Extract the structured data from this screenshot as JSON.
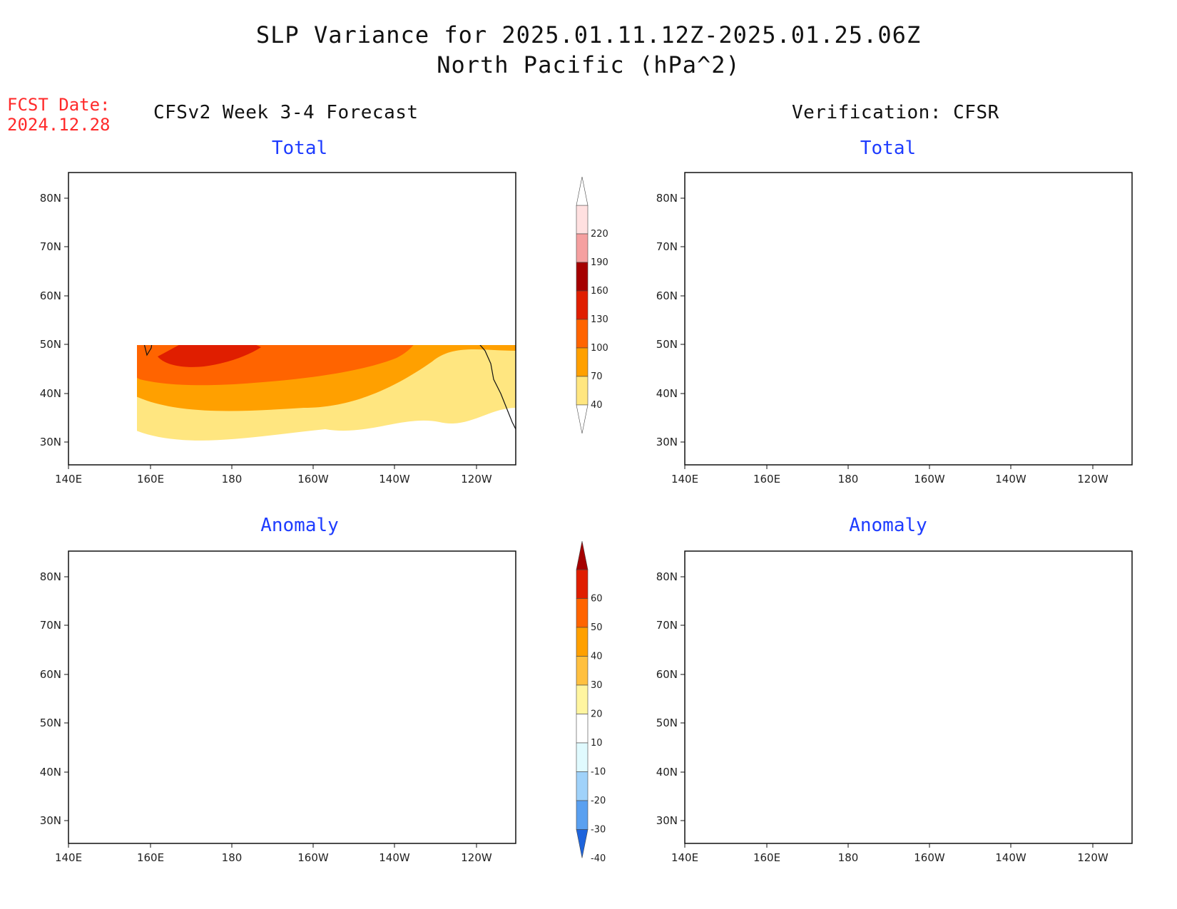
{
  "header": {
    "title_line1": "SLP Variance for 2025.01.11.12Z-2025.01.25.06Z",
    "title_line2": "North Pacific (hPa^2)",
    "fcst_label": "FCST Date:",
    "fcst_date": "2024.12.28"
  },
  "columns": {
    "left": "CFSv2 Week 3-4 Forecast",
    "right": "Verification: CFSR"
  },
  "panels": {
    "top_left": "Total",
    "top_right": "Total",
    "bottom_left": "Anomaly",
    "bottom_right": "Anomaly"
  },
  "axes": {
    "lat_ticks": [
      "80N",
      "70N",
      "60N",
      "50N",
      "40N",
      "30N"
    ],
    "lon_ticks": [
      "140E",
      "160E",
      "180",
      "160W",
      "140W",
      "120W"
    ]
  },
  "colorbars": {
    "total": {
      "levels": [
        "40",
        "70",
        "100",
        "130",
        "160",
        "190",
        "220"
      ],
      "colors": [
        "#ffe680",
        "#ffa000",
        "#ff6400",
        "#e01e00",
        "#a50000",
        "#f5a0a0",
        "#ffe0e0"
      ]
    },
    "anomaly": {
      "levels": [
        "60",
        "50",
        "40",
        "30",
        "20",
        "10",
        "-10",
        "-20",
        "-30",
        "-40"
      ],
      "colors": [
        "#a50000",
        "#e01e00",
        "#ff6400",
        "#ffa000",
        "#ffc040",
        "#fff5a0",
        "#ffffff",
        "#e0fafe",
        "#a0d2fa",
        "#5aa0f0",
        "#1e64dc"
      ]
    }
  }
}
